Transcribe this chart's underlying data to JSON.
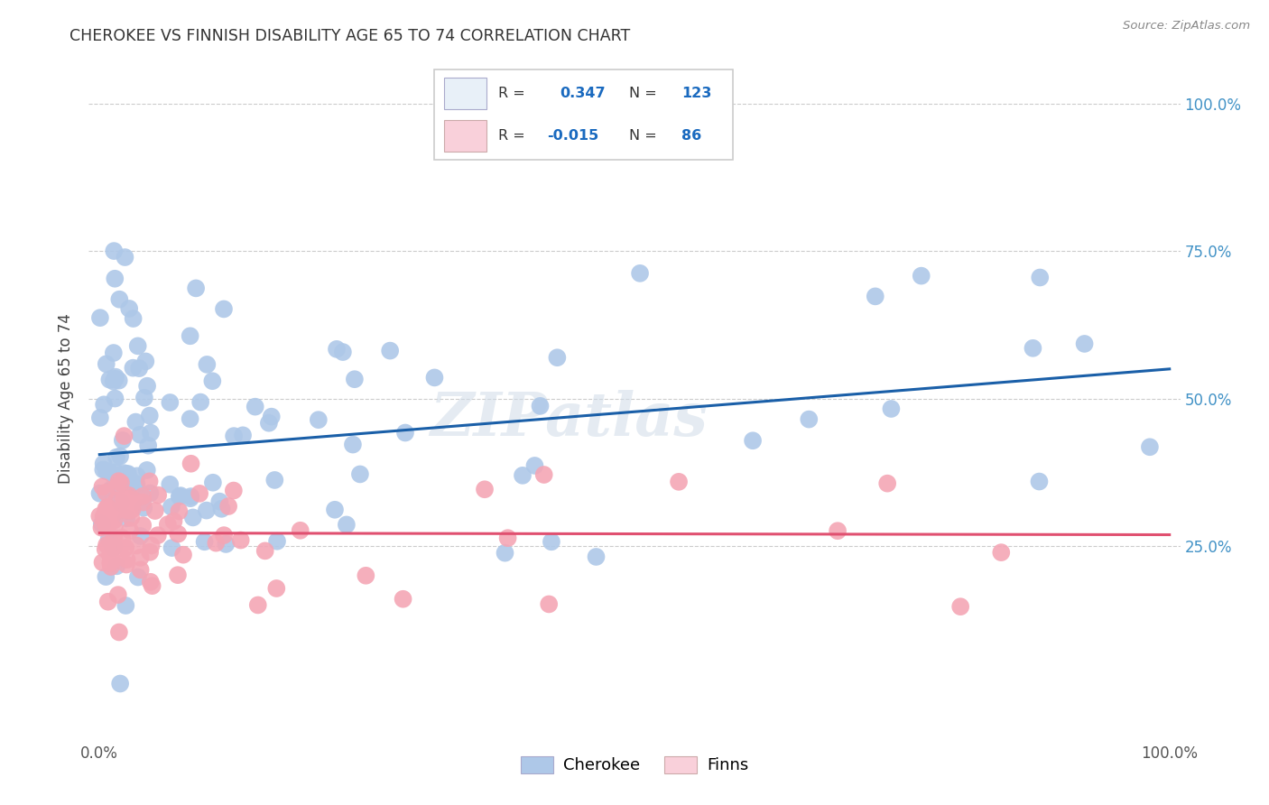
{
  "title": "CHEROKEE VS FINNISH DISABILITY AGE 65 TO 74 CORRELATION CHART",
  "source": "Source: ZipAtlas.com",
  "ylabel": "Disability Age 65 to 74",
  "cherokee_color": "#aec8e8",
  "cherokee_edge": "none",
  "finns_color": "#f4a6b5",
  "finns_edge": "none",
  "cherokee_line_color": "#1a5fa8",
  "finns_line_color": "#e05070",
  "R_cherokee": "0.347",
  "N_cherokee": "123",
  "R_finns": "-0.015",
  "N_finns": "86",
  "watermark": "ZIPatlas",
  "background_color": "#ffffff",
  "grid_color": "#cccccc",
  "legend_box_color": "#e8f0f8",
  "legend_pink_box": "#f9d0da",
  "ytick_color": "#4292c6",
  "cherokee_intercept": 0.405,
  "cherokee_slope": 0.145,
  "finns_intercept": 0.272,
  "finns_slope": -0.003
}
